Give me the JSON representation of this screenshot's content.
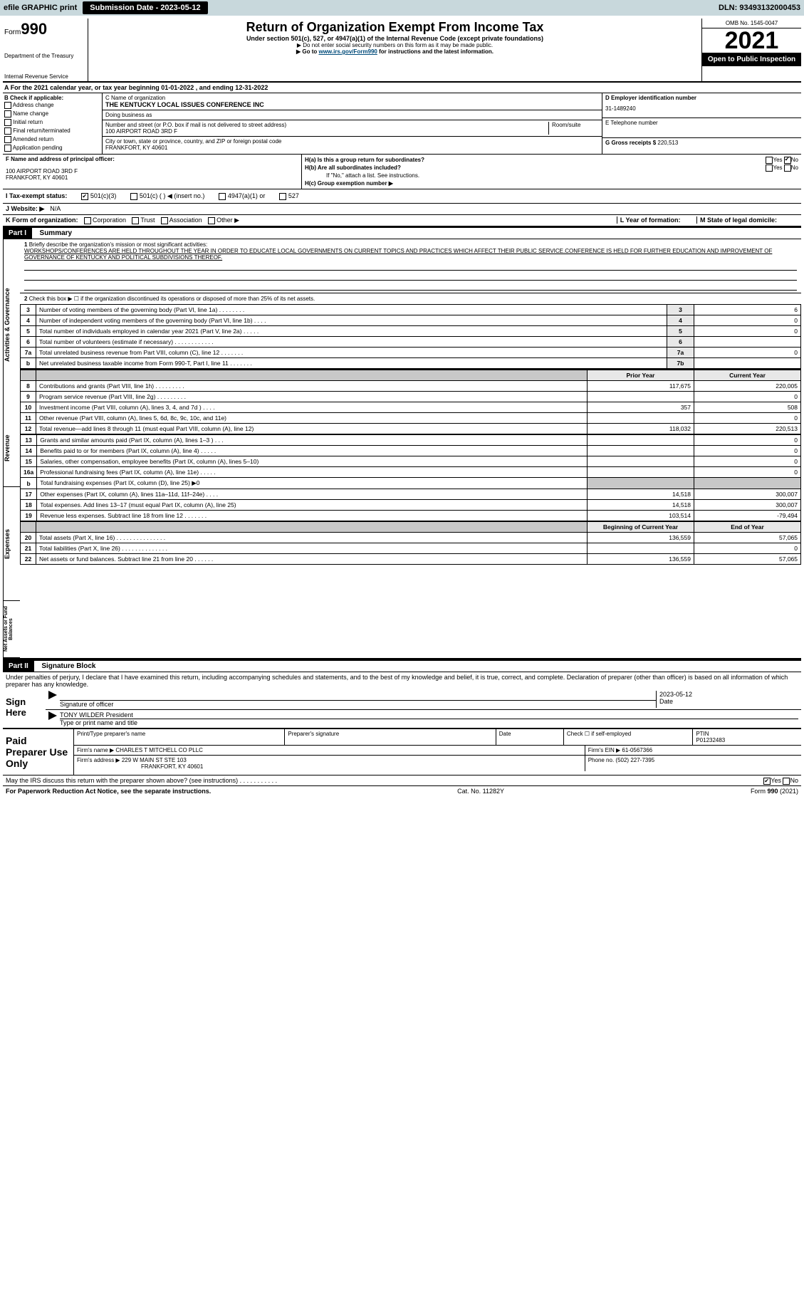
{
  "topbar": {
    "efile": "efile GRAPHIC print",
    "submission": "Submission Date - 2023-05-12",
    "dln": "DLN: 93493132000453"
  },
  "header": {
    "form_word": "Form",
    "form_num": "990",
    "dept1": "Department of the Treasury",
    "dept2": "Internal Revenue Service",
    "title": "Return of Organization Exempt From Income Tax",
    "sub": "Under section 501(c), 527, or 4947(a)(1) of the Internal Revenue Code (except private foundations)",
    "note1": "▶ Do not enter social security numbers on this form as it may be made public.",
    "note2": "▶ Go to ",
    "note2_link": "www.irs.gov/Form990",
    "note2_tail": " for instructions and the latest information.",
    "omb": "OMB No. 1545-0047",
    "year": "2021",
    "open_pub": "Open to Public Inspection"
  },
  "period": {
    "a_lbl": "A",
    "text": "For the 2021 calendar year, or tax year beginning 01-01-2022   , and ending 12-31-2022"
  },
  "colB": {
    "hdr": "B Check if applicable:",
    "items": [
      "Address change",
      "Name change",
      "Initial return",
      "Final return/terminated",
      "Amended return",
      "Application pending"
    ]
  },
  "colC": {
    "c_lbl": "C Name of organization",
    "org": "THE KENTUCKY LOCAL ISSUES CONFERENCE INC",
    "dba_lbl": "Doing business as",
    "dba": "",
    "street_lbl": "Number and street (or P.O. box if mail is not delivered to street address)",
    "room_lbl": "Room/suite",
    "street": "100 AIRPORT ROAD 3RD F",
    "city_lbl": "City or town, state or province, country, and ZIP or foreign postal code",
    "city": "FRANKFORT, KY  40601"
  },
  "colD": {
    "d_lbl": "D Employer identification number",
    "ein": "31-1489240",
    "e_lbl": "E Telephone number",
    "phone": "",
    "g_lbl": "G Gross receipts $",
    "g_val": "220,513"
  },
  "rowF": {
    "f_lbl": "F Name and address of principal officer:",
    "line1": "100 AIRPORT ROAD 3RD F",
    "line2": "FRANKFORT, KY  40601"
  },
  "rowH": {
    "ha_lbl": "H(a)  Is this a group return for subordinates?",
    "hb_lbl": "H(b)  Are all subordinates included?",
    "hb_note": "If \"No,\" attach a list. See instructions.",
    "hc_lbl": "H(c)  Group exemption number ▶",
    "yes": "Yes",
    "no": "No"
  },
  "rowI": {
    "lbl": "I  Tax-exempt status:",
    "opt1": "501(c)(3)",
    "opt2": "501(c) (  ) ◀ (insert no.)",
    "opt3": "4947(a)(1) or",
    "opt4": "527"
  },
  "rowJ": {
    "lbl": "J  Website: ▶",
    "val": "N/A"
  },
  "rowK": {
    "lbl": "K Form of organization:",
    "opts": [
      "Corporation",
      "Trust",
      "Association",
      "Other ▶"
    ],
    "l_lbl": "L Year of formation:",
    "m_lbl": "M State of legal domicile:"
  },
  "part1": {
    "hdr": "Part I",
    "sub": "Summary",
    "q1_lbl": "1",
    "q1_text": "Briefly describe the organization's mission or most significant activities:",
    "q1_mission": "WORKSHOPS/CONFERENCES ARE HELD THROUGHOUT THE YEAR IN ORDER TO EDUCATE LOCAL GOVERNMENTS ON CURRENT TOPICS AND PRACTICES WHICH AFFECT THEIR PUBLIC SERVICE.CONFERENCE IS HELD FOR FURTHER EDUCATION AND IMPROVEMENT OF GOVERNANCE OF KENTUCKY AND POLITICAL SUBDIVISIONS THEREOF.",
    "q2_lbl": "2",
    "q2_text": "Check this box ▶ ☐  if the organization discontinued its operations or disposed of more than 25% of its net assets.",
    "gov_vert": "Activities & Governance",
    "rev_vert": "Revenue",
    "exp_vert": "Expenses",
    "net_vert": "Net Assets or Fund Balances",
    "rows_small": [
      {
        "n": "3",
        "t": "Number of voting members of the governing body (Part VI, line 1a)   .    .    .    .    .    .    .    .",
        "box": "3",
        "v": "6"
      },
      {
        "n": "4",
        "t": "Number of independent voting members of the governing body (Part VI, line 1b)   .    .    .    .",
        "box": "4",
        "v": "0"
      },
      {
        "n": "5",
        "t": "Total number of individuals employed in calendar year 2021 (Part V, line 2a)   .    .    .    .    .",
        "box": "5",
        "v": "0"
      },
      {
        "n": "6",
        "t": "Total number of volunteers (estimate if necessary)    .    .    .    .    .    .    .    .    .    .    .    .",
        "box": "6",
        "v": ""
      },
      {
        "n": "7a",
        "t": "Total unrelated business revenue from Part VIII, column (C), line 12   .    .    .    .    .    .    .",
        "box": "7a",
        "v": "0"
      },
      {
        "n": "b",
        "t": "Net unrelated business taxable income from Form 990-T, Part I, line 11   .    .    .    .    .    .    .",
        "box": "7b",
        "v": ""
      }
    ],
    "prior_hdr": "Prior Year",
    "cur_hdr": "Current Year",
    "rev_rows": [
      {
        "n": "8",
        "t": "Contributions and grants (Part VIII, line 1h)   .    .    .    .    .    .    .    .    .",
        "p": "117,675",
        "c": "220,005"
      },
      {
        "n": "9",
        "t": "Program service revenue (Part VIII, line 2g)   .    .    .    .    .    .    .    .    .",
        "p": "",
        "c": "0"
      },
      {
        "n": "10",
        "t": "Investment income (Part VIII, column (A), lines 3, 4, and 7d )   .    .    .    .",
        "p": "357",
        "c": "508"
      },
      {
        "n": "11",
        "t": "Other revenue (Part VIII, column (A), lines 5, 6d, 8c, 9c, 10c, and 11e)",
        "p": "",
        "c": "0"
      },
      {
        "n": "12",
        "t": "Total revenue—add lines 8 through 11 (must equal Part VIII, column (A), line 12)",
        "p": "118,032",
        "c": "220,513"
      }
    ],
    "exp_rows": [
      {
        "n": "13",
        "t": "Grants and similar amounts paid (Part IX, column (A), lines 1–3 )   .    .    .",
        "p": "",
        "c": "0"
      },
      {
        "n": "14",
        "t": "Benefits paid to or for members (Part IX, column (A), line 4)   .    .    .    .    .",
        "p": "",
        "c": "0"
      },
      {
        "n": "15",
        "t": "Salaries, other compensation, employee benefits (Part IX, column (A), lines 5–10)",
        "p": "",
        "c": "0"
      },
      {
        "n": "16a",
        "t": "Professional fundraising fees (Part IX, column (A), line 11e)   .    .    .    .    .",
        "p": "",
        "c": "0"
      },
      {
        "n": "b",
        "t": "Total fundraising expenses (Part IX, column (D), line 25) ▶0",
        "p": "shade",
        "c": "shade"
      },
      {
        "n": "17",
        "t": "Other expenses (Part IX, column (A), lines 11a–11d, 11f–24e)   .    .    .    .",
        "p": "14,518",
        "c": "300,007"
      },
      {
        "n": "18",
        "t": "Total expenses. Add lines 13–17 (must equal Part IX, column (A), line 25)",
        "p": "14,518",
        "c": "300,007"
      },
      {
        "n": "19",
        "t": "Revenue less expenses. Subtract line 18 from line 12   .    .    .    .    .    .    .",
        "p": "103,514",
        "c": "-79,494"
      }
    ],
    "beg_hdr": "Beginning of Current Year",
    "end_hdr": "End of Year",
    "net_rows": [
      {
        "n": "20",
        "t": "Total assets (Part X, line 16)   .    .    .    .    .    .    .    .    .    .    .    .    .    .    .",
        "p": "136,559",
        "c": "57,065"
      },
      {
        "n": "21",
        "t": "Total liabilities (Part X, line 26)   .    .    .    .    .    .    .    .    .    .    .    .    .    .",
        "p": "",
        "c": "0"
      },
      {
        "n": "22",
        "t": "Net assets or fund balances. Subtract line 21 from line 20   .    .    .    .    .    .",
        "p": "136,559",
        "c": "57,065"
      }
    ]
  },
  "part2": {
    "hdr": "Part II",
    "sub": "Signature Block",
    "decl": "Under penalties of perjury, I declare that I have examined this return, including accompanying schedules and statements, and to the best of my knowledge and belief, it is true, correct, and complete. Declaration of preparer (other than officer) is based on all information of which preparer has any knowledge.",
    "sign_here": "Sign Here",
    "sig_lbl": "Signature of officer",
    "date_lbl": "Date",
    "date_val": "2023-05-12",
    "name": "TONY WILDER  President",
    "name_lbl": "Type or print name and title",
    "paid_lbl": "Paid Preparer Use Only",
    "prep_name_lbl": "Print/Type preparer's name",
    "prep_sig_lbl": "Preparer's signature",
    "prep_date_lbl": "Date",
    "prep_chk": "Check ☐ if self-employed",
    "ptin_lbl": "PTIN",
    "ptin": "P01232483",
    "firm_name_lbl": "Firm's name    ▶",
    "firm_name": "CHARLES T MITCHELL CO PLLC",
    "firm_ein_lbl": "Firm's EIN ▶",
    "firm_ein": "61-0567366",
    "firm_addr_lbl": "Firm's address ▶",
    "firm_addr1": "229 W MAIN ST STE 103",
    "firm_addr2": "FRANKFORT, KY  40601",
    "firm_phone_lbl": "Phone no.",
    "firm_phone": "(502) 227-7395",
    "discuss": "May the IRS discuss this return with the preparer shown above? (see instructions)   .    .    .    .    .    .    .    .    .    .    .",
    "yes": "Yes",
    "no": "No"
  },
  "footer": {
    "pra": "For Paperwork Reduction Act Notice, see the separate instructions.",
    "cat": "Cat. No. 11282Y",
    "form": "Form 990 (2021)"
  }
}
